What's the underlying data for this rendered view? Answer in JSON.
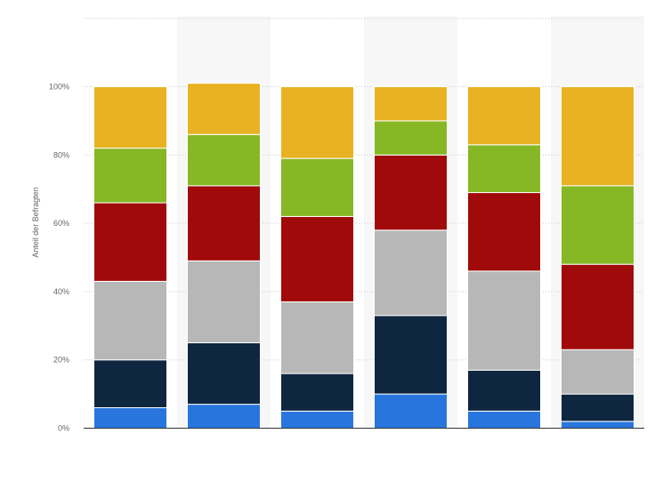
{
  "chart_data": {
    "type": "bar",
    "stacked": true,
    "categories": [
      "",
      "",
      "",
      "",
      "",
      ""
    ],
    "ylabel": "Anteil der Befragten",
    "ylim": [
      0,
      120
    ],
    "yticks": [
      0,
      20,
      40,
      60,
      80,
      100
    ],
    "ytick_labels": [
      "0%",
      "20%",
      "40%",
      "60%",
      "80%",
      "100%"
    ],
    "grid": true,
    "series": [
      {
        "color": "#2876dd",
        "values": [
          6,
          7,
          5,
          10,
          5,
          2
        ]
      },
      {
        "color": "#0f2640",
        "values": [
          14,
          18,
          11,
          23,
          12,
          8
        ]
      },
      {
        "color": "#b7b7b7",
        "values": [
          23,
          24,
          21,
          25,
          29,
          13
        ]
      },
      {
        "color": "#a10a0a",
        "values": [
          23,
          22,
          25,
          22,
          23,
          25
        ]
      },
      {
        "color": "#86b825",
        "values": [
          16,
          15,
          17,
          10,
          14,
          23
        ]
      },
      {
        "color": "#e8b222",
        "values": [
          18,
          15,
          21,
          10,
          17,
          29
        ]
      }
    ]
  }
}
